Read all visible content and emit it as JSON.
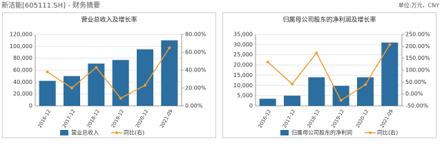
{
  "header": {
    "title": "新洁能[605111.SH] - 财务摘要",
    "unit": "单位:万元，CNY"
  },
  "chart_data": [
    {
      "type": "bar",
      "title": "营业总收入及增长率",
      "categories": [
        "2016-12",
        "2017-12",
        "2018-12",
        "2019-12",
        "2020-12",
        "2021-09"
      ],
      "series": [
        {
          "name": "营业总收入",
          "type": "bar",
          "color": "#2b6e9f",
          "values": [
            42000,
            50000,
            71000,
            77000,
            95000,
            110000
          ]
        },
        {
          "name": "同比(右)",
          "type": "line",
          "axis": "y2",
          "color": "#f39c34",
          "values": [
            38,
            20,
            43,
            8.5,
            23,
            65
          ]
        }
      ],
      "ylim": [
        0,
        120000
      ],
      "yticks": [
        0,
        {
          "value": 20000,
          "label": "20,000"
        },
        {
          "value": 40000,
          "label": "40,000"
        },
        {
          "value": 60000,
          "label": "60,000"
        },
        {
          "value": 80000,
          "label": "80,000"
        },
        {
          "value": 100000,
          "label": "100,000"
        },
        {
          "value": 120000,
          "label": "120,000"
        }
      ],
      "y2lim": [
        0,
        80
      ],
      "y2ticks": [
        {
          "value": 0,
          "label": "0.00%"
        },
        {
          "value": 20,
          "label": "20.00%"
        },
        {
          "value": 40,
          "label": "40.00%"
        },
        {
          "value": 60,
          "label": "60.00%"
        },
        {
          "value": 80,
          "label": "80.00%"
        }
      ],
      "grid": true,
      "legend": "bottom"
    },
    {
      "type": "bar",
      "title": "归属母公司股东的净利润及增长率",
      "categories": [
        "2016-12",
        "2017-12",
        "2018-12",
        "2019-12",
        "2020-12",
        "2021-09"
      ],
      "series": [
        {
          "name": "归属母公司股东的净利润",
          "type": "bar",
          "color": "#2b6e9f",
          "values": [
            3500,
            5000,
            14000,
            9800,
            14000,
            31000
          ]
        },
        {
          "name": "同比(右)",
          "type": "line",
          "axis": "y2",
          "color": "#f39c34",
          "values": [
            134,
            42,
            172,
            -27,
            39,
            207
          ]
        }
      ],
      "ylim": [
        0,
        35000
      ],
      "yticks": [
        0,
        {
          "value": 5000,
          "label": "5,000"
        },
        {
          "value": 10000,
          "label": "10,000"
        },
        {
          "value": 15000,
          "label": "15,000"
        },
        {
          "value": 20000,
          "label": "20,000"
        },
        {
          "value": 25000,
          "label": "25,000"
        },
        {
          "value": 30000,
          "label": "30,000"
        },
        {
          "value": 35000,
          "label": "35,000"
        }
      ],
      "y2lim": [
        -50,
        250
      ],
      "y2ticks": [
        {
          "value": -50,
          "label": "-50.00%"
        },
        {
          "value": 0,
          "label": "0.00%"
        },
        {
          "value": 50,
          "label": "50.00%"
        },
        {
          "value": 100,
          "label": "100.00%"
        },
        {
          "value": 150,
          "label": "150.00%"
        },
        {
          "value": 200,
          "label": "200.00%"
        },
        {
          "value": 250,
          "label": "250.00%"
        }
      ],
      "grid": true,
      "legend": "bottom"
    }
  ]
}
